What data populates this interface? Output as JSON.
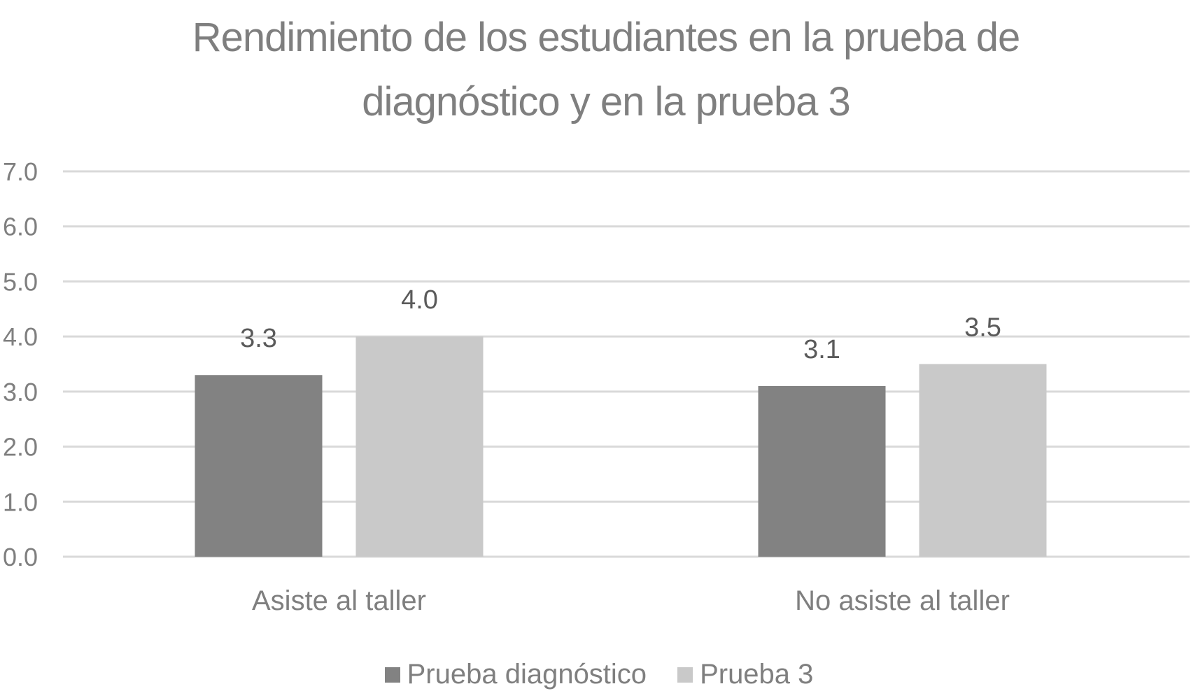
{
  "chart_data": {
    "type": "bar",
    "title": "Rendimiento de los estudiantes en la prueba de diagnóstico y en la prueba 3",
    "title_lines": [
      "Rendimiento de los estudiantes en la prueba de",
      "diagnóstico y en la prueba 3"
    ],
    "categories": [
      "Asiste al taller",
      "No asiste al taller"
    ],
    "series": [
      {
        "name": "Prueba diagnóstico",
        "color": "#828282",
        "values": [
          3.3,
          3.1
        ],
        "value_labels": [
          "3.3",
          "3.1"
        ]
      },
      {
        "name": "Prueba 3",
        "color": "#c9c9c9",
        "values": [
          4.0,
          3.5
        ],
        "value_labels": [
          "4.0",
          "3.5"
        ]
      }
    ],
    "ylim": [
      0,
      7
    ],
    "y_ticks": [
      0,
      1,
      2,
      3,
      4,
      5,
      6,
      7
    ],
    "y_tick_labels": [
      "0.0",
      "1.0",
      "2.0",
      "3.0",
      "4.0",
      "5.0",
      "6.0",
      "7.0"
    ],
    "grid": true,
    "grid_color": "#d9d9d9",
    "xlabel": "",
    "ylabel": "",
    "legend_position": "bottom"
  }
}
